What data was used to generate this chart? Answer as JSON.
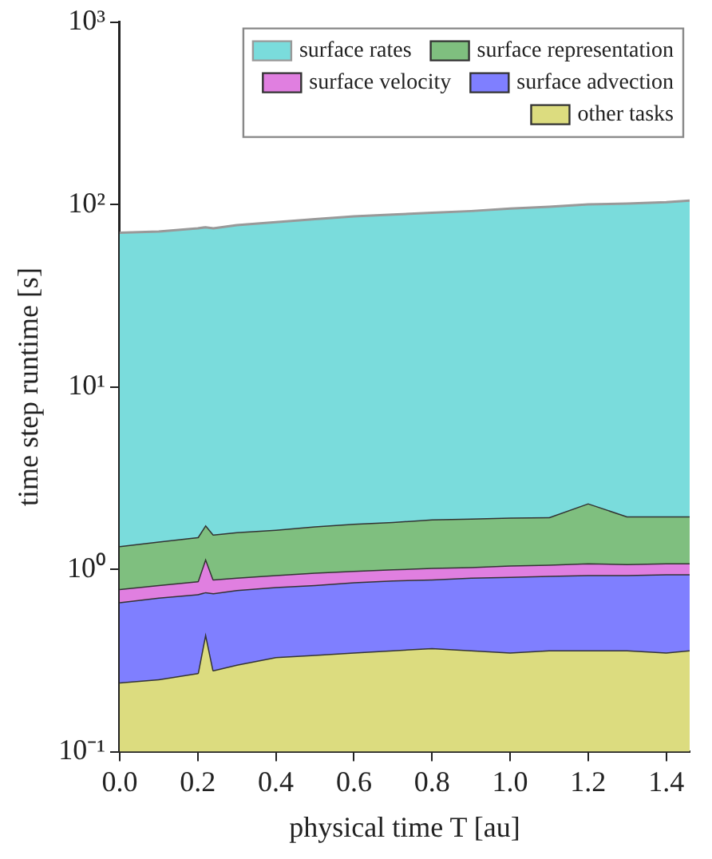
{
  "chart_data": {
    "type": "area",
    "xlabel": "physical time T [au]",
    "ylabel": "time step runtime [s]",
    "log": "y",
    "grid": false,
    "legend": "top right",
    "marker": "none",
    "line_style": "solid",
    "x": [
      0,
      0.1,
      0.2,
      0.22,
      0.24,
      0.3,
      0.4,
      0.5,
      0.6,
      0.7,
      0.8,
      0.9,
      1.0,
      1.1,
      1.2,
      1.3,
      1.4,
      1.46
    ],
    "xlim": [
      0,
      1.46
    ],
    "xticks": [
      {
        "value": 0,
        "label": "0.0"
      },
      0.2,
      0.4,
      0.6,
      0.8,
      {
        "value": 1,
        "label": "1.0"
      },
      1.2,
      1.4
    ],
    "ylim": [
      0.1,
      1000
    ],
    "yticks": [
      {
        "value": 0.1,
        "label": "10⁻¹"
      },
      {
        "value": 1,
        "label": "10⁰"
      },
      {
        "value": 10,
        "label": "10¹"
      },
      {
        "value": 100,
        "label": "10²"
      },
      {
        "value": 1000,
        "label": "10³"
      }
    ],
    "series": [
      {
        "name": "surface rates",
        "color": "#7adcdc",
        "values": [
          70,
          71,
          74,
          75,
          74,
          77,
          80,
          83,
          86,
          88,
          90,
          92,
          95,
          97,
          100,
          101,
          103,
          105
        ]
      },
      {
        "name": "surface representation",
        "color": "#7fbf7f",
        "values": [
          1.34,
          1.42,
          1.5,
          1.75,
          1.55,
          1.6,
          1.65,
          1.72,
          1.78,
          1.82,
          1.88,
          1.9,
          1.92,
          1.93,
          2.3,
          1.95,
          1.95,
          1.95
        ]
      },
      {
        "name": "surface velocity",
        "color": "#e07fe0",
        "values": [
          0.78,
          0.82,
          0.86,
          1.15,
          0.88,
          0.9,
          0.93,
          0.96,
          0.98,
          1.0,
          1.02,
          1.03,
          1.05,
          1.06,
          1.08,
          1.07,
          1.08,
          1.08
        ]
      },
      {
        "name": "surface advection",
        "color": "#7f7fff",
        "values": [
          0.66,
          0.7,
          0.73,
          0.75,
          0.74,
          0.77,
          0.8,
          0.82,
          0.85,
          0.87,
          0.88,
          0.9,
          0.91,
          0.92,
          0.93,
          0.93,
          0.94,
          0.94
        ]
      },
      {
        "name": "other tasks",
        "color": "#dcdc7f",
        "values": [
          0.24,
          0.25,
          0.27,
          0.45,
          0.28,
          0.3,
          0.33,
          0.34,
          0.35,
          0.36,
          0.37,
          0.36,
          0.35,
          0.36,
          0.36,
          0.36,
          0.35,
          0.36
        ]
      }
    ]
  }
}
